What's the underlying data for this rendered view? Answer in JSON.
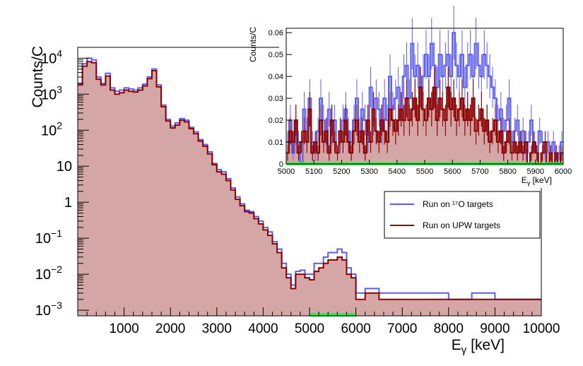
{
  "chart_data": [
    {
      "type": "histogram",
      "xlabel": "E",
      "xlabel_sub": "γ",
      "xlabel_unit": "[keV]",
      "ylabel": "Counts/C",
      "y_scale": "log",
      "xlim": [
        0,
        10000
      ],
      "ylim": [
        0.0007,
        20000
      ],
      "x_ticks": [
        1000,
        2000,
        3000,
        4000,
        5000,
        6000,
        7000,
        8000,
        9000,
        10000
      ],
      "x_tick_labels": [
        "1000",
        "2000",
        "3000",
        "4000",
        "5000",
        "6000",
        "7000",
        "8000",
        "9000",
        "10000"
      ],
      "y_ticks": [
        0.001,
        0.01,
        0.1,
        1,
        10,
        100,
        1000,
        10000
      ],
      "y_tick_labels": [
        {
          "base": "10",
          "exp": "−3"
        },
        {
          "base": "10",
          "exp": "−2"
        },
        {
          "base": "10",
          "exp": "−1"
        },
        {
          "base": "1",
          "exp": ""
        },
        {
          "base": "10",
          "exp": ""
        },
        {
          "base": "10",
          "exp": "2"
        },
        {
          "base": "10",
          "exp": "3"
        },
        {
          "base": "10",
          "exp": "4"
        }
      ],
      "highlight_range": [
        5000,
        6000
      ],
      "series": [
        {
          "name": "Run on ¹⁷O targets",
          "color": "#5c5cf0",
          "x": [
            0,
            100,
            200,
            300,
            400,
            500,
            600,
            700,
            800,
            900,
            1000,
            1100,
            1200,
            1300,
            1400,
            1500,
            1600,
            1700,
            1800,
            1900,
            2000,
            2100,
            2200,
            2300,
            2400,
            2500,
            2600,
            2700,
            2800,
            2900,
            3000,
            3100,
            3200,
            3300,
            3400,
            3500,
            3600,
            3700,
            3800,
            3900,
            4000,
            4100,
            4200,
            4300,
            4400,
            4500,
            4600,
            4700,
            4800,
            4900,
            5000,
            5100,
            5200,
            5300,
            5400,
            5500,
            5600,
            5700,
            5800,
            5900,
            6000,
            6200,
            6500,
            7000,
            7500,
            8000,
            8500,
            9000,
            9500,
            10000
          ],
          "y": [
            2000,
            7000,
            10000,
            9000,
            3000,
            2000,
            3800,
            1500,
            1200,
            1300,
            1500,
            1400,
            1300,
            1500,
            1900,
            3000,
            5000,
            1800,
            500,
            200,
            130,
            160,
            210,
            190,
            120,
            90,
            55,
            40,
            25,
            12,
            8,
            7,
            4.5,
            2.5,
            1.4,
            0.9,
            0.6,
            0.55,
            0.4,
            0.3,
            0.2,
            0.15,
            0.08,
            0.05,
            0.02,
            0.01,
            0.005,
            0.012,
            0.013,
            0.01,
            0.01,
            0.02,
            0.02,
            0.03,
            0.04,
            0.04,
            0.05,
            0.04,
            0.015,
            0.01,
            0.003,
            0.004,
            0.003,
            0.003,
            0.003,
            0.002,
            0.003,
            0.002,
            0.002,
            0.002
          ]
        },
        {
          "name": "Run on UPW targets",
          "color": "#8b0000",
          "x": [
            0,
            100,
            200,
            300,
            400,
            500,
            600,
            700,
            800,
            900,
            1000,
            1100,
            1200,
            1300,
            1400,
            1500,
            1600,
            1700,
            1800,
            1900,
            2000,
            2100,
            2200,
            2300,
            2400,
            2500,
            2600,
            2700,
            2800,
            2900,
            3000,
            3100,
            3200,
            3300,
            3400,
            3500,
            3600,
            3700,
            3800,
            3900,
            4000,
            4100,
            4200,
            4300,
            4400,
            4500,
            4600,
            4700,
            4800,
            4900,
            5000,
            5100,
            5200,
            5300,
            5400,
            5500,
            5600,
            5700,
            5800,
            5900,
            6000,
            6200,
            6500,
            7000,
            7500,
            8000,
            8500,
            9000,
            9500,
            10000
          ],
          "y": [
            1800,
            6000,
            8000,
            7500,
            2600,
            1800,
            3200,
            1300,
            1000,
            1100,
            1300,
            1200,
            1150,
            1300,
            1700,
            2700,
            4500,
            1600,
            450,
            180,
            115,
            140,
            190,
            170,
            110,
            80,
            50,
            36,
            22,
            11,
            7,
            6,
            4,
            2.2,
            1.2,
            0.8,
            0.55,
            0.5,
            0.35,
            0.25,
            0.17,
            0.12,
            0.07,
            0.04,
            0.015,
            0.008,
            0.004,
            0.01,
            0.01,
            0.008,
            0.007,
            0.012,
            0.015,
            0.02,
            0.025,
            0.025,
            0.03,
            0.025,
            0.01,
            0.008,
            0.002,
            0.003,
            0.002,
            0.002,
            0.002,
            0.002,
            0.002,
            0.002,
            0.002,
            0.002
          ]
        }
      ],
      "legend": {
        "placement": "right",
        "entries": [
          "Run on ¹⁷O targets",
          "Run on UPW targets"
        ]
      }
    },
    {
      "type": "histogram",
      "inset": true,
      "xlabel": "E",
      "xlabel_sub": "γ",
      "xlabel_unit": "[keV]",
      "ylabel": "Counts/C",
      "xlim": [
        5000,
        6000
      ],
      "ylim": [
        0,
        0.062
      ],
      "x_ticks": [
        5000,
        5100,
        5200,
        5300,
        5400,
        5500,
        5600,
        5700,
        5800,
        5900,
        6000
      ],
      "x_tick_labels": [
        "5000",
        "5100",
        "5200",
        "5300",
        "5400",
        "5500",
        "5600",
        "5700",
        "5800",
        "5900",
        "6000"
      ],
      "y_ticks": [
        0,
        0.01,
        0.02,
        0.03,
        0.04,
        0.05,
        0.06
      ],
      "y_tick_labels": [
        "0",
        "0.01",
        "0.02",
        "0.03",
        "0.04",
        "0.05",
        "0.06"
      ],
      "highlight_range": [
        5000,
        6000
      ],
      "bin_width": 10,
      "series": [
        {
          "name": "Run on ¹⁷O targets",
          "color": "#5c5cf0",
          "values": [
            0.01,
            0.02,
            0.005,
            0.015,
            0.01,
            0.0,
            0.025,
            0.015,
            0.03,
            0.01,
            0.005,
            0.015,
            0.03,
            0.02,
            0.01,
            0.025,
            0.015,
            0.02,
            0.005,
            0.01,
            0.02,
            0.025,
            0.015,
            0.01,
            0.02,
            0.03,
            0.015,
            0.025,
            0.02,
            0.01,
            0.035,
            0.02,
            0.03,
            0.025,
            0.015,
            0.03,
            0.02,
            0.04,
            0.025,
            0.03,
            0.035,
            0.025,
            0.04,
            0.045,
            0.03,
            0.055,
            0.04,
            0.045,
            0.035,
            0.04,
            0.05,
            0.04,
            0.055,
            0.045,
            0.035,
            0.05,
            0.04,
            0.045,
            0.05,
            0.04,
            0.06,
            0.045,
            0.04,
            0.05,
            0.035,
            0.045,
            0.05,
            0.04,
            0.055,
            0.045,
            0.04,
            0.05,
            0.045,
            0.04,
            0.035,
            0.03,
            0.02,
            0.025,
            0.015,
            0.02,
            0.03,
            0.01,
            0.015,
            0.02,
            0.01,
            0.015,
            0.005,
            0.01,
            0.02,
            0.01,
            0.005,
            0.015,
            0.01,
            0.005,
            0.01,
            0.005,
            0.01,
            0.0,
            0.005,
            0.01
          ]
        },
        {
          "name": "Run on UPW targets",
          "color": "#8b0000",
          "values": [
            0.005,
            0.015,
            0.01,
            0.02,
            0.005,
            0.01,
            0.015,
            0.01,
            0.025,
            0.005,
            0.01,
            0.005,
            0.02,
            0.01,
            0.015,
            0.005,
            0.02,
            0.01,
            0.005,
            0.015,
            0.01,
            0.02,
            0.01,
            0.005,
            0.015,
            0.02,
            0.01,
            0.015,
            0.005,
            0.02,
            0.01,
            0.025,
            0.015,
            0.01,
            0.02,
            0.015,
            0.01,
            0.025,
            0.02,
            0.015,
            0.02,
            0.025,
            0.02,
            0.03,
            0.02,
            0.025,
            0.03,
            0.02,
            0.035,
            0.025,
            0.02,
            0.03,
            0.025,
            0.035,
            0.02,
            0.03,
            0.025,
            0.02,
            0.035,
            0.025,
            0.03,
            0.02,
            0.025,
            0.03,
            0.02,
            0.025,
            0.02,
            0.03,
            0.015,
            0.02,
            0.025,
            0.015,
            0.02,
            0.01,
            0.015,
            0.02,
            0.01,
            0.015,
            0.005,
            0.01,
            0.015,
            0.005,
            0.01,
            0.005,
            0.01,
            0.005,
            0.01,
            0.0,
            0.005,
            0.01,
            0.005,
            0.0,
            0.005,
            0.01,
            0.0,
            0.005,
            0.0,
            0.005,
            0.0,
            0.005
          ]
        }
      ]
    }
  ]
}
